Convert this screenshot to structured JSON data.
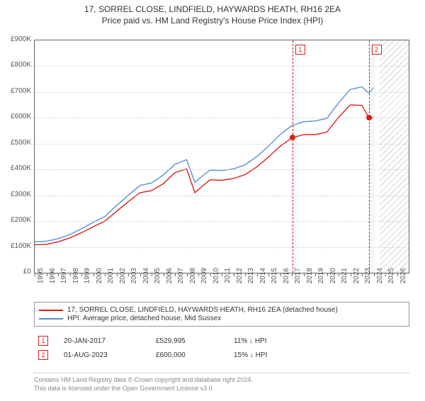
{
  "title": "17, SORREL CLOSE, LINDFIELD, HAYWARDS HEATH, RH16 2EA",
  "subtitle": "Price paid vs. HM Land Registry's House Price Index (HPI)",
  "chart": {
    "type": "line",
    "xlim": [
      1995,
      2027
    ],
    "ylim": [
      0,
      900
    ],
    "ytick_step": 100,
    "ytick_prefix": "£",
    "ytick_suffix": "K",
    "xtick_step": 1,
    "xtick_max_label": 2026,
    "grid_color": "#cccccc",
    "background_color": "#ffffff",
    "axis_color": "#666666",
    "label_fontsize": 10,
    "hatched_from": 2024.5,
    "series": [
      {
        "name": "property",
        "color": "#d91e18",
        "line_width": 1.4,
        "data": [
          [
            1995,
            108
          ],
          [
            1996,
            110
          ],
          [
            1997,
            120
          ],
          [
            1998,
            135
          ],
          [
            1999,
            155
          ],
          [
            2000,
            178
          ],
          [
            2001,
            200
          ],
          [
            2002,
            238
          ],
          [
            2003,
            275
          ],
          [
            2004,
            310
          ],
          [
            2005,
            318
          ],
          [
            2006,
            345
          ],
          [
            2007,
            388
          ],
          [
            2008,
            402
          ],
          [
            2008.7,
            310
          ],
          [
            2009,
            322
          ],
          [
            2010,
            360
          ],
          [
            2011,
            358
          ],
          [
            2012,
            365
          ],
          [
            2013,
            380
          ],
          [
            2014,
            410
          ],
          [
            2015,
            448
          ],
          [
            2016,
            490
          ],
          [
            2017,
            522
          ],
          [
            2018,
            535
          ],
          [
            2019,
            535
          ],
          [
            2020,
            545
          ],
          [
            2021,
            602
          ],
          [
            2022,
            650
          ],
          [
            2023,
            648
          ],
          [
            2023.6,
            600
          ],
          [
            2024,
            602
          ]
        ]
      },
      {
        "name": "hpi",
        "color": "#5b8fd6",
        "line_width": 1.4,
        "data": [
          [
            1995,
            120
          ],
          [
            1996,
            122
          ],
          [
            1997,
            132
          ],
          [
            1998,
            148
          ],
          [
            1999,
            170
          ],
          [
            2000,
            195
          ],
          [
            2001,
            218
          ],
          [
            2002,
            260
          ],
          [
            2003,
            300
          ],
          [
            2004,
            338
          ],
          [
            2005,
            348
          ],
          [
            2006,
            378
          ],
          [
            2007,
            420
          ],
          [
            2008,
            438
          ],
          [
            2008.7,
            350
          ],
          [
            2009,
            362
          ],
          [
            2010,
            398
          ],
          [
            2011,
            396
          ],
          [
            2012,
            402
          ],
          [
            2013,
            418
          ],
          [
            2014,
            450
          ],
          [
            2015,
            490
          ],
          [
            2016,
            535
          ],
          [
            2017,
            570
          ],
          [
            2018,
            585
          ],
          [
            2019,
            588
          ],
          [
            2020,
            598
          ],
          [
            2021,
            658
          ],
          [
            2022,
            710
          ],
          [
            2023,
            720
          ],
          [
            2023.6,
            695
          ],
          [
            2024,
            718
          ]
        ]
      }
    ],
    "markers": [
      {
        "n": "1",
        "x": 2017.05,
        "color": "#d91e18",
        "dot_y": 525,
        "band_to": 2017.4,
        "band_color": "#cfe2f3"
      },
      {
        "n": "2",
        "x": 2023.58,
        "color": "#d91e18",
        "dot_y": 600,
        "band_to": 2024.1,
        "band_color": "#cfe2f3"
      }
    ]
  },
  "legend": {
    "items": [
      {
        "color": "#d91e18",
        "label": "17, SORREL CLOSE, LINDFIELD, HAYWARDS HEATH, RH16 2EA (detached house)"
      },
      {
        "color": "#5b8fd6",
        "label": "HPI: Average price, detached house, Mid Sussex"
      }
    ]
  },
  "events": {
    "rows": [
      {
        "n": "1",
        "color": "#d91e18",
        "date": "20-JAN-2017",
        "price": "£529,995",
        "pct": "11%",
        "direction": "↓",
        "tail": "HPI"
      },
      {
        "n": "2",
        "color": "#d91e18",
        "date": "01-AUG-2023",
        "price": "£600,000",
        "pct": "15%",
        "direction": "↓",
        "tail": "HPI"
      }
    ]
  },
  "attribution": {
    "line1": "Contains HM Land Registry data © Crown copyright and database right 2024.",
    "line2": "This data is licensed under the Open Government Licence v3.0."
  }
}
